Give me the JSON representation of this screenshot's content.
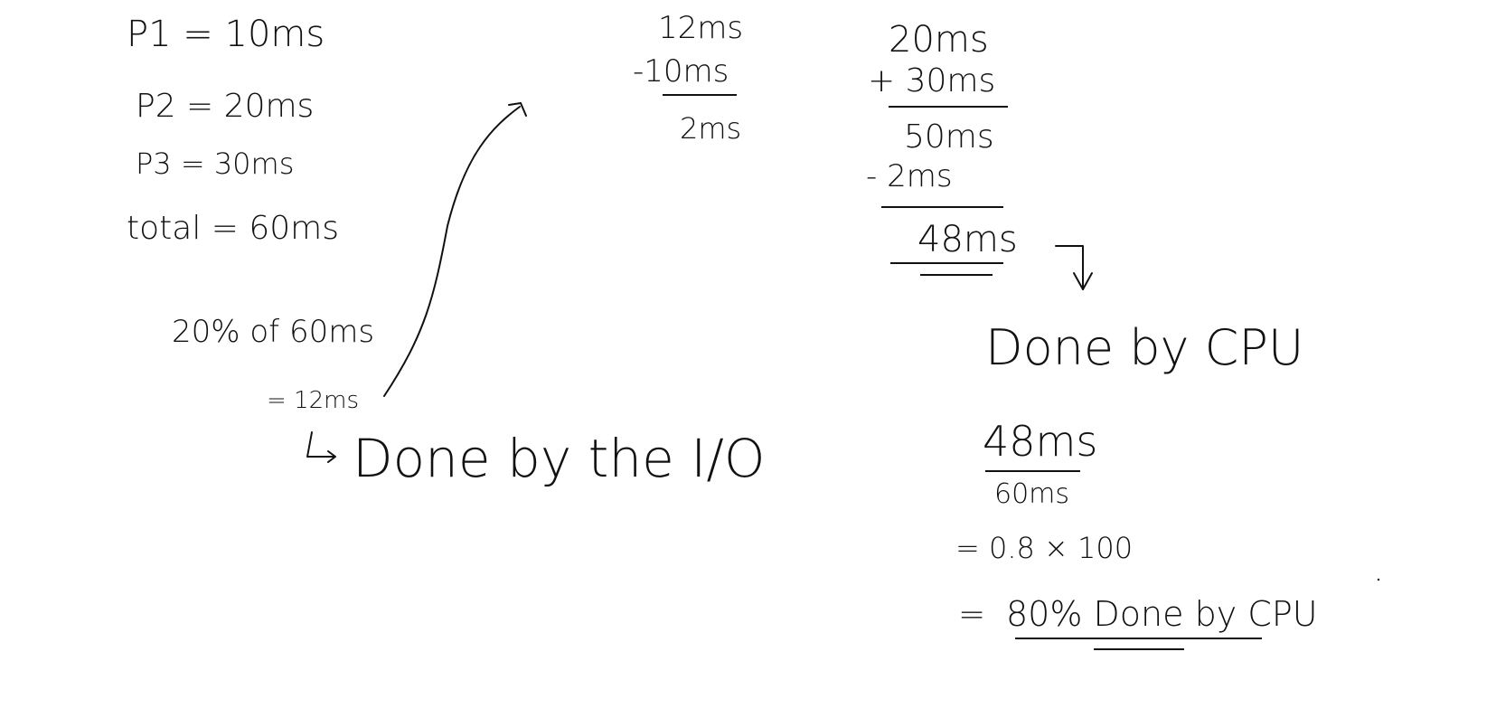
{
  "left_block": {
    "p1": "P1 = 10ms",
    "p2": "P2 = 20ms",
    "p3": "P3 = 30ms",
    "total": "total = 60ms",
    "percent": "20% of 60ms",
    "result": "= 12ms",
    "note": "Done by the I/O"
  },
  "middle_calc": {
    "a": "12ms",
    "b": "-10ms",
    "result": "2ms"
  },
  "right_calc": {
    "a": "20ms",
    "b": "+ 30ms",
    "sum": "50ms",
    "minus": "- 2ms",
    "result": "48ms",
    "label": "Done by CPU",
    "frac_num": "48ms",
    "frac_den": "60ms",
    "mult": "= 0.8 × 100",
    "final_eq": "=",
    "final": "80% Done by CPU"
  },
  "colors": {
    "ink": "#111111",
    "background": "#ffffff"
  }
}
